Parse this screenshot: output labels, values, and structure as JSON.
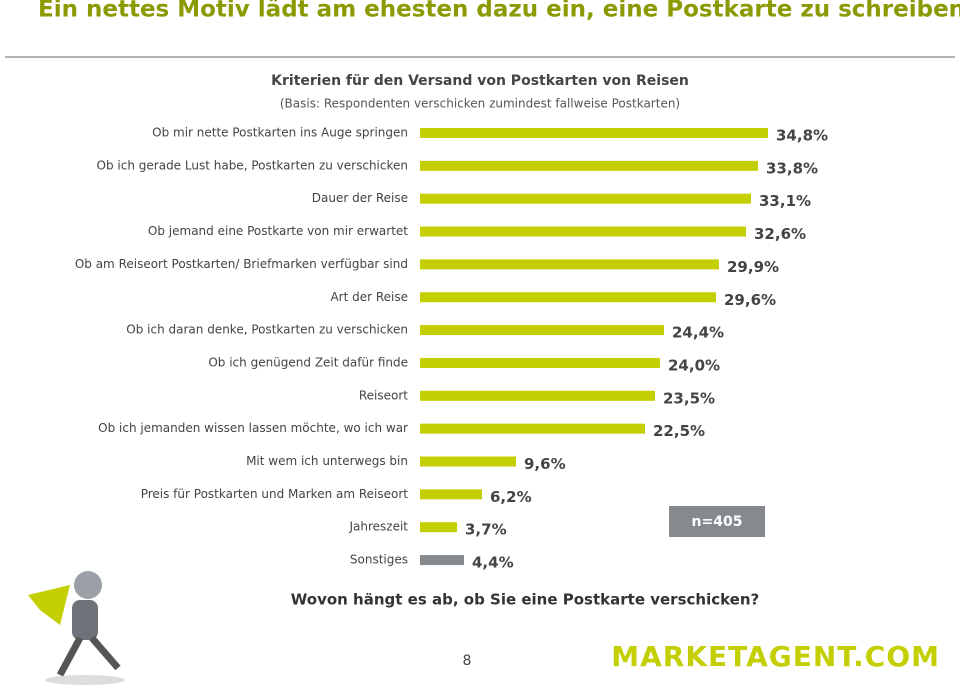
{
  "page": {
    "heading": "Ein nettes Motiv lädt am ehesten dazu ein, eine Postkarte zu schreiben.",
    "page_number": "8",
    "logo": "MARKETAGENT.COM"
  },
  "chart_data": {
    "type": "bar",
    "orientation": "horizontal",
    "title": "Kriterien für den Versand von Postkarten von Reisen",
    "subtitle": "(Basis: Respondenten verschicken zumindest fallweise Postkarten)",
    "categories": [
      "Ob mir nette Postkarten ins Auge springen",
      "Ob ich gerade Lust habe, Postkarten zu verschicken",
      "Dauer der Reise",
      "Ob jemand eine Postkarte von mir erwartet",
      "Ob am Reiseort Postkarten/ Briefmarken verfügbar sind",
      "Art der Reise",
      "Ob ich daran denke, Postkarten zu verschicken",
      "Ob ich genügend Zeit dafür finde",
      "Reiseort",
      "Ob ich jemanden wissen lassen möchte, wo ich war",
      "Mit wem ich unterwegs bin",
      "Preis für Postkarten und Marken am Reiseort",
      "Jahreszeit",
      "Sonstiges"
    ],
    "values": [
      34.8,
      33.8,
      33.1,
      32.6,
      29.9,
      29.6,
      24.4,
      24.0,
      23.5,
      22.5,
      9.6,
      6.2,
      3.7,
      4.4
    ],
    "value_labels": [
      "34,8%",
      "33,8%",
      "33,1%",
      "32,6%",
      "29,9%",
      "29,6%",
      "24,4%",
      "24,0%",
      "23,5%",
      "22,5%",
      "9,6%",
      "6,2%",
      "3,7%",
      "4,4%"
    ],
    "colors": [
      "#c3cf00",
      "#c3cf00",
      "#c3cf00",
      "#c3cf00",
      "#c3cf00",
      "#c3cf00",
      "#c3cf00",
      "#c3cf00",
      "#c3cf00",
      "#c3cf00",
      "#c3cf00",
      "#c3cf00",
      "#c3cf00",
      "#868a8e"
    ],
    "sample_note": "n=405",
    "question": "Wovon hängt es ab, ob Sie eine Postkarte verschicken?"
  }
}
